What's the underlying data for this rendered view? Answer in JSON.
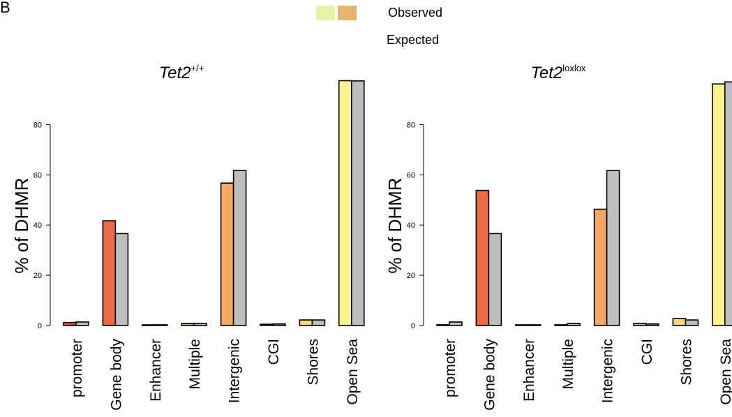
{
  "figure": {
    "panel_letter": "B",
    "legend": {
      "swatch_colors": [
        "#e8f0a6",
        "#e5b56f"
      ],
      "observed_label": "Observed",
      "expected_label": "Expected"
    }
  },
  "chart_data": [
    {
      "type": "bar",
      "title": "Tet2",
      "title_superscript": "+/+",
      "ylabel": "% of DHMR",
      "xlabel": "",
      "ylim": [
        0,
        100
      ],
      "yticks": [
        0,
        20,
        40,
        60,
        80
      ],
      "grid": false,
      "categories": [
        "promoter",
        "Gene body",
        "Enhancer",
        "Multiple",
        "Intergenic",
        "CGI",
        "Shores",
        "Open Sea"
      ],
      "series": [
        {
          "name": "Observed",
          "values": [
            1.2,
            41.7,
            0.2,
            0.8,
            56.7,
            0.5,
            2.2,
            97.5
          ],
          "colors": [
            "#e8503a",
            "#ec6a45",
            "#f08a55",
            "#f09a5a",
            "#f3a863",
            "#f5b66a",
            "#fbd77e",
            "#fbf48f"
          ]
        },
        {
          "name": "Expected",
          "values": [
            1.4,
            36.6,
            0.2,
            0.8,
            61.7,
            0.6,
            2.2,
            97.4
          ],
          "colors": [
            "#bebebe",
            "#bebebe",
            "#bebebe",
            "#bebebe",
            "#bebebe",
            "#bebebe",
            "#bebebe",
            "#bebebe"
          ]
        }
      ]
    },
    {
      "type": "bar",
      "title": "Tet2",
      "title_superscript": "loxlox",
      "ylabel": "% of DHMR",
      "xlabel": "",
      "ylim": [
        0,
        100
      ],
      "yticks": [
        0,
        20,
        40,
        60,
        80
      ],
      "grid": false,
      "categories": [
        "promoter",
        "Gene body",
        "Enhancer",
        "Multiple",
        "Intergenic",
        "CGI",
        "Shores",
        "Open Sea"
      ],
      "series": [
        {
          "name": "Observed",
          "values": [
            0.3,
            53.8,
            0.2,
            0.3,
            46.3,
            0.8,
            2.8,
            96.2
          ],
          "colors": [
            "#e8503a",
            "#ec6a45",
            "#f08a55",
            "#f09a5a",
            "#f3a863",
            "#f5b66a",
            "#fbd77e",
            "#fbf48f"
          ]
        },
        {
          "name": "Expected",
          "values": [
            1.4,
            36.6,
            0.2,
            0.8,
            61.7,
            0.6,
            2.2,
            97.0
          ],
          "colors": [
            "#bebebe",
            "#bebebe",
            "#bebebe",
            "#bebebe",
            "#bebebe",
            "#bebebe",
            "#bebebe",
            "#bebebe"
          ]
        }
      ]
    }
  ]
}
